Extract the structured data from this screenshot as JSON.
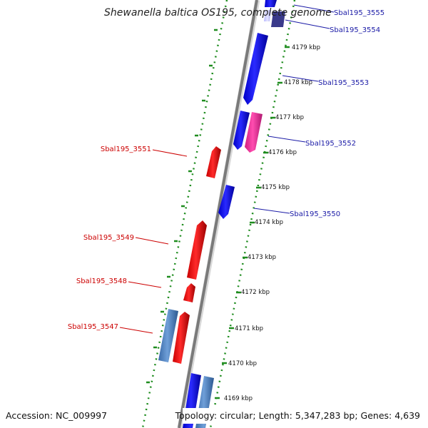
{
  "title": "Shewanella baltica OS195, complete genome",
  "footer": {
    "accession": "Accession: NC_009997",
    "topology": "Topology: circular; Length: 5,347,283 bp; Genes: 4,639"
  },
  "ticks": [
    "4179 kbp",
    "4178 kbp",
    "4177 kbp",
    "4176 kbp",
    "4175 kbp",
    "4174 kbp",
    "4173 kbp",
    "4172 kbp",
    "4171 kbp",
    "4170 kbp",
    "4169 kbp"
  ],
  "gene_labels": {
    "right": [
      "Sbal195_3555",
      "Sbal195_3554",
      "Sbal195_3553",
      "Sbal195_3552",
      "Sbal195_3550"
    ],
    "left": [
      "Sbal195_3551",
      "Sbal195_3549",
      "Sbal195_3548",
      "Sbal195_3547"
    ]
  },
  "colors": {
    "forward_gene": "#0000ee",
    "reverse_gene": "#ee0000",
    "rna_gene": "#ee2c9c",
    "pseudo_gene": "#4a7fc0",
    "backbone": "#808080",
    "ruler": "#1e8c1e"
  }
}
